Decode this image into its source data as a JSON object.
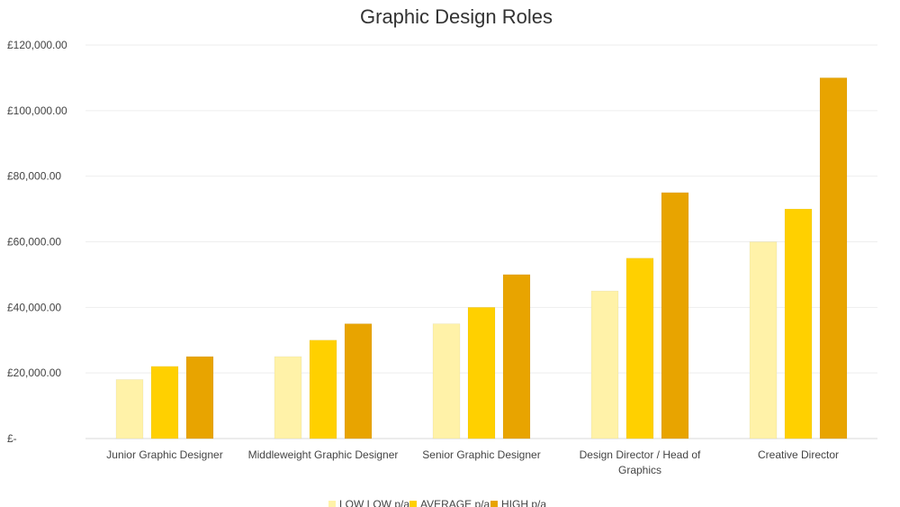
{
  "chart_data": {
    "type": "bar",
    "title": "Graphic Design Roles",
    "categories": [
      "Junior Graphic Designer",
      "Middleweight Graphic Designer",
      "Senior Graphic Designer",
      "Design Director / Head of Graphics",
      "Creative Director"
    ],
    "series": [
      {
        "name": "LOW LOW p/a",
        "color": "#FFF2A8",
        "values": [
          18000,
          25000,
          35000,
          45000,
          60000
        ]
      },
      {
        "name": "AVERAGE p/a",
        "color": "#FFD000",
        "values": [
          22000,
          30000,
          40000,
          55000,
          70000
        ]
      },
      {
        "name": "HIGH p/a",
        "color": "#E8A400",
        "values": [
          25000,
          35000,
          50000,
          75000,
          110000
        ]
      }
    ],
    "ylim": [
      0,
      120000
    ],
    "yticks": [
      0,
      20000,
      40000,
      60000,
      80000,
      100000,
      120000
    ],
    "ytick_labels": [
      "£-",
      "£20,000.00",
      "£40,000.00",
      "£60,000.00",
      "£80,000.00",
      "£100,000.00",
      "£120,000.00"
    ],
    "grid": true,
    "legend": "bottom"
  }
}
